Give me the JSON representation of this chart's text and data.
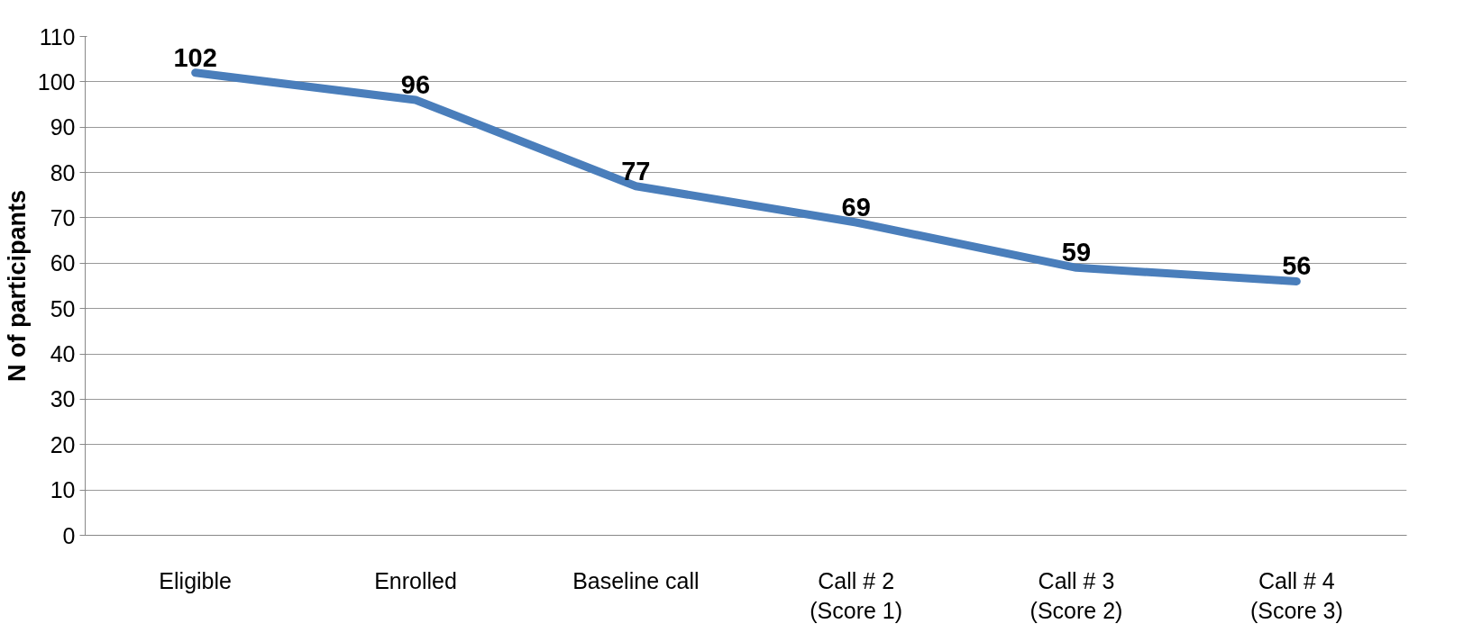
{
  "chart_data": {
    "type": "line",
    "ylabel": "N of participants",
    "categories": [
      "Eligible",
      "Enrolled",
      "Baseline call",
      "Call # 2\n(Score 1)",
      "Call # 3\n(Score 2)",
      "Call # 4\n(Score 3)"
    ],
    "series": [
      {
        "color": "#4a7ebb",
        "values": [
          102,
          96,
          77,
          69,
          59,
          56
        ]
      }
    ],
    "ylim": [
      0,
      110
    ],
    "yticks": [
      0,
      10,
      20,
      30,
      40,
      50,
      60,
      70,
      80,
      90,
      100,
      110
    ],
    "grid": "y",
    "data_labels": true,
    "marker": "none",
    "line_style": "solid"
  }
}
